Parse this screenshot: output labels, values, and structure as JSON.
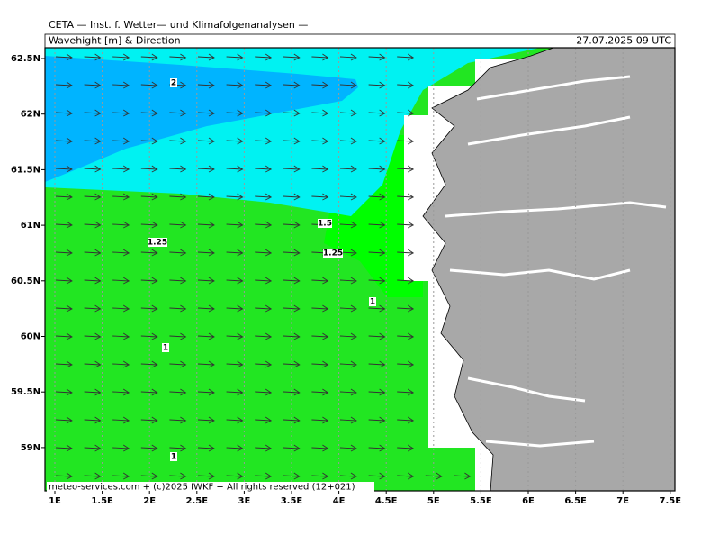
{
  "header": {
    "title": "CETA — Inst. f. Wetter— und Klimafolgenanalysen —",
    "subtitle": "Wavehight [m] & Direction",
    "valid_time": "27.07.2025 09 UTC"
  },
  "map": {
    "lat_ticks": [
      "62.5N",
      "62N",
      "61.5N",
      "61N",
      "60.5N",
      "60N",
      "59.5N",
      "59N"
    ],
    "lon_ticks": [
      "1E",
      "1.5E",
      "2E",
      "2.5E",
      "3E",
      "3.5E",
      "4E",
      "4.5E",
      "5E",
      "5.5E",
      "6E",
      "6.5E",
      "7E",
      "7.5E"
    ],
    "contour_labels": [
      "2",
      "1.5",
      "1.25",
      "1.25",
      "1",
      "1",
      "1"
    ]
  },
  "footer": {
    "credit": "meteo-services.com + (c)2025 IWKF + All rights reserved (12+021)"
  }
}
